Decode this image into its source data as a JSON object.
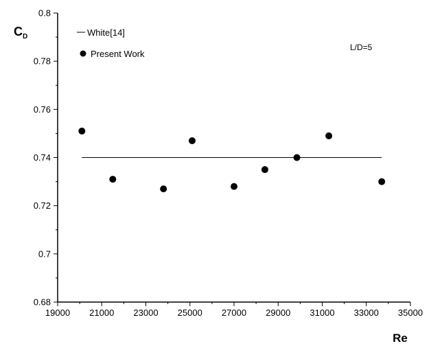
{
  "chart_data": {
    "type": "scatter",
    "xlabel": "Re",
    "ylabel": "C",
    "ylabel_subscript": "D",
    "xlim": [
      19000,
      35000
    ],
    "ylim": [
      0.68,
      0.8
    ],
    "x_ticks": [
      19000,
      21000,
      23000,
      25000,
      27000,
      29000,
      31000,
      33000,
      35000
    ],
    "y_ticks": [
      "0.68",
      "0.7",
      "0.72",
      "0.74",
      "0.76",
      "0.78",
      "0.8"
    ],
    "grid": false,
    "legend_position": "top-left",
    "annotation": "L/D=5",
    "series": [
      {
        "name": "White[14]",
        "kind": "line",
        "color": "#000000",
        "x": [
          20100,
          33700
        ],
        "y": [
          0.74,
          0.74
        ]
      },
      {
        "name": "Present Work",
        "kind": "scatter",
        "color": "#000000",
        "x": [
          20100,
          21500,
          23800,
          25100,
          27000,
          28400,
          29850,
          31300,
          33700
        ],
        "y": [
          0.751,
          0.731,
          0.727,
          0.747,
          0.728,
          0.735,
          0.74,
          0.749,
          0.73
        ]
      }
    ]
  }
}
